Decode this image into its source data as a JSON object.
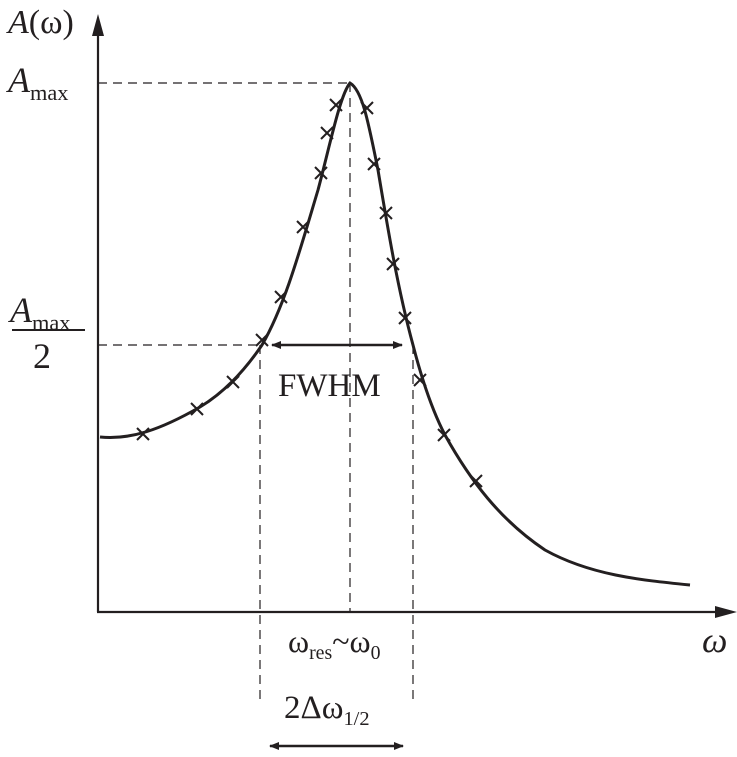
{
  "diagram": {
    "y_axis_label": {
      "symbol": "A",
      "arg": "(ω)"
    },
    "x_axis_label": "ω",
    "a_max_label": {
      "base": "A",
      "sub": "max"
    },
    "half_max_label": {
      "num_base": "A",
      "num_sub": "max",
      "den": "2"
    },
    "fwhm_label": "FWHM",
    "resonance_label": {
      "w1": "ω",
      "w1_sub": "res",
      "tilde": "~",
      "w2": "ω",
      "w2_sub": "0"
    },
    "width_label": {
      "pre": "2Δω",
      "sub": "1/2"
    }
  },
  "colors": {
    "ink": "#231f20",
    "background": "#ffffff"
  },
  "curve": {
    "type": "lorentzian-resonance",
    "baseline_level": 0.33,
    "peak_level": 1.0,
    "half_max_level": 0.5,
    "data_markers": 18
  }
}
